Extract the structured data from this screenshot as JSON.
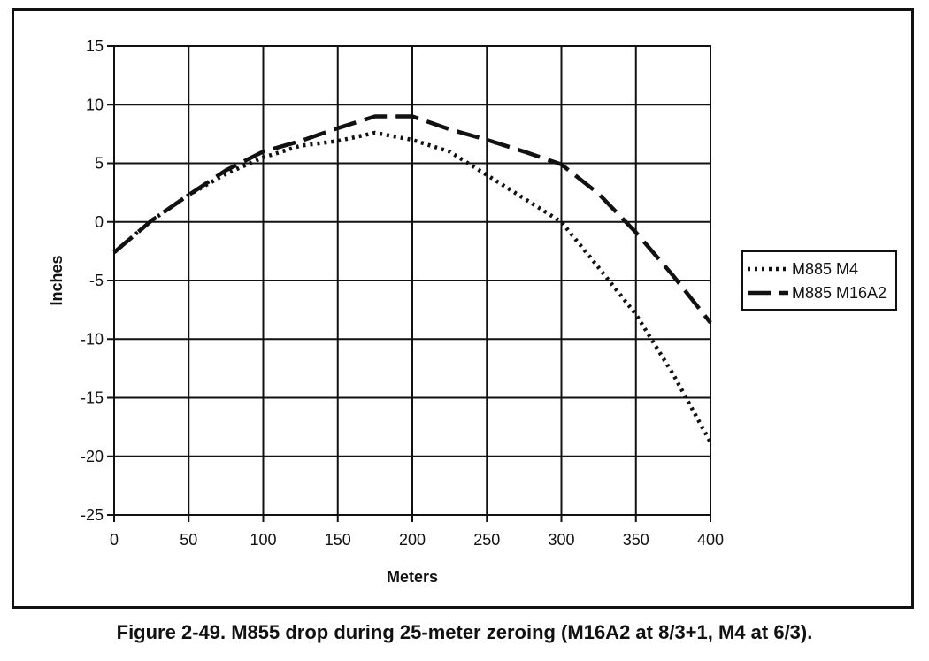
{
  "caption": "Figure 2-49. M855 drop during 25-meter zeroing (M16A2 at 8/3+1, M4 at 6/3).",
  "chart_data": {
    "type": "line",
    "xlabel": "Meters",
    "ylabel": "Inches",
    "xlim": [
      0,
      400
    ],
    "ylim": [
      -25,
      15
    ],
    "xticks": [
      0,
      50,
      100,
      150,
      200,
      250,
      300,
      350,
      400
    ],
    "yticks": [
      15,
      10,
      5,
      0,
      -5,
      -10,
      -15,
      -20,
      -25
    ],
    "grid": true,
    "legend_position": "right",
    "series": [
      {
        "name": "M885 M4",
        "style": "dotted",
        "x": [
          0,
          25,
          50,
          75,
          100,
          125,
          150,
          175,
          200,
          225,
          250,
          275,
          300,
          325,
          350,
          375,
          400
        ],
        "values": [
          -2.6,
          0.1,
          2.3,
          4.1,
          5.5,
          6.5,
          6.9,
          7.6,
          7.0,
          6.0,
          4.0,
          2.0,
          0.0,
          -3.9,
          -7.9,
          -13.0,
          -18.8
        ]
      },
      {
        "name": "M885 M16A2",
        "style": "dashed",
        "x": [
          0,
          25,
          50,
          75,
          100,
          125,
          150,
          175,
          200,
          225,
          250,
          275,
          300,
          325,
          350,
          375,
          400
        ],
        "values": [
          -2.6,
          0.1,
          2.3,
          4.4,
          6.0,
          6.9,
          8.0,
          9.0,
          9.0,
          7.9,
          7.0,
          6.0,
          4.9,
          2.4,
          -0.9,
          -4.6,
          -8.6
        ]
      }
    ],
    "colors": {
      "line": "#111111",
      "grid": "#111111",
      "background": "#ffffff"
    }
  }
}
